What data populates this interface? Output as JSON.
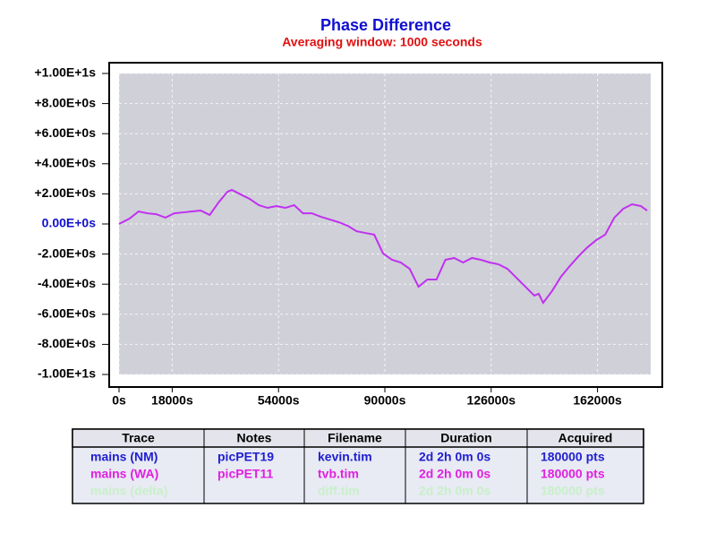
{
  "chart_data": {
    "type": "line",
    "title": "Phase Difference",
    "subtitle": "Averaging window: 1000 seconds",
    "xlim": [
      0,
      180000
    ],
    "ylim": [
      -10,
      10
    ],
    "xticks": [
      {
        "value": 0,
        "label": "0s"
      },
      {
        "value": 18000,
        "label": "18000s"
      },
      {
        "value": 54000,
        "label": "54000s"
      },
      {
        "value": 90000,
        "label": "90000s"
      },
      {
        "value": 126000,
        "label": "126000s"
      },
      {
        "value": 162000,
        "label": "162000s"
      }
    ],
    "yticks": [
      {
        "value": 10,
        "label": "+1.00E+1s"
      },
      {
        "value": 8,
        "label": "+8.00E+0s"
      },
      {
        "value": 6,
        "label": "+6.00E+0s"
      },
      {
        "value": 4,
        "label": "+4.00E+0s"
      },
      {
        "value": 2,
        "label": "+2.00E+0s"
      },
      {
        "value": 0,
        "label": "0.00E+0s"
      },
      {
        "value": -2,
        "label": "-2.00E+0s"
      },
      {
        "value": -4,
        "label": "-4.00E+0s"
      },
      {
        "value": -6,
        "label": "-6.00E+0s"
      },
      {
        "value": -8,
        "label": "-8.00E+0s"
      },
      {
        "value": -10,
        "label": "-1.00E+1s"
      }
    ],
    "grid": true,
    "series": [
      {
        "color": "#c030f0",
        "x": [
          0,
          3600,
          6600,
          9600,
          12600,
          15700,
          18700,
          21700,
          24700,
          27700,
          30700,
          33700,
          36700,
          38200,
          41200,
          44200,
          47300,
          50300,
          53300,
          56300,
          59300,
          62300,
          65300,
          68300,
          71300,
          74300,
          77400,
          80400,
          83400,
          86400,
          89400,
          92400,
          95400,
          98400,
          101400,
          104400,
          107500,
          110500,
          113500,
          116500,
          119500,
          122500,
          125500,
          128500,
          131500,
          134500,
          137600,
          140600,
          142100,
          143600,
          146600,
          149600,
          152600,
          155600,
          158600,
          161600,
          164600,
          167700,
          170700,
          173700,
          176700,
          178800
        ],
        "values": [
          0,
          0.36,
          0.83,
          0.71,
          0.65,
          0.42,
          0.71,
          0.77,
          0.83,
          0.89,
          0.6,
          1.43,
          2.14,
          2.26,
          1.96,
          1.67,
          1.25,
          1.07,
          1.19,
          1.07,
          1.25,
          0.71,
          0.71,
          0.48,
          0.3,
          0.12,
          -0.12,
          -0.48,
          -0.6,
          -0.71,
          -1.96,
          -2.38,
          -2.56,
          -2.98,
          -4.17,
          -3.69,
          -3.69,
          -2.38,
          -2.26,
          -2.56,
          -2.26,
          -2.38,
          -2.56,
          -2.68,
          -2.98,
          -3.57,
          -4.17,
          -4.76,
          -4.64,
          -5.24,
          -4.46,
          -3.51,
          -2.8,
          -2.14,
          -1.55,
          -1.07,
          -0.71,
          0.42,
          1.01,
          1.31,
          1.19,
          0.89
        ]
      }
    ]
  },
  "table": {
    "header": [
      "Trace",
      "Notes",
      "Filename",
      "Duration",
      "Acquired"
    ],
    "rows": [
      [
        "mains (NM)",
        "picPET19",
        "kevin.tim",
        "2d 2h 0m 0s",
        "180000 pts"
      ],
      [
        "mains (WA)",
        "picPET11",
        "tvb.tim",
        "2d 2h 0m 0s",
        "180000 pts"
      ],
      [
        "mains (delta)",
        "",
        "diff.tim",
        "2d 2h 0m 0s",
        "180000 pts"
      ]
    ],
    "row_colors": [
      "#2020d0",
      "#e020e0",
      "#c8f0c8"
    ]
  }
}
